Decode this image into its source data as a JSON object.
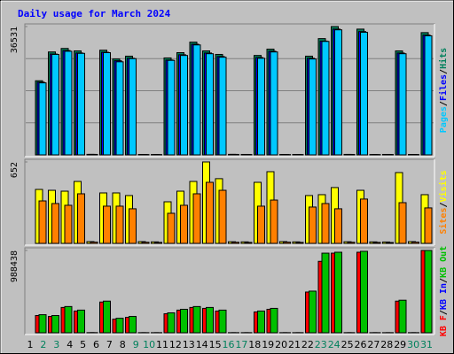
{
  "title": "Daily usage for March 2024",
  "chart_data": [
    {
      "type": "bar",
      "ylim": [
        0,
        36531
      ],
      "yticks": [
        36531
      ],
      "legend_separator": "/",
      "legend_reversed": true,
      "series": [
        {
          "name": "Hits",
          "color": "#00805c",
          "values": [
            21100,
            29300,
            30300,
            29600,
            150,
            29800,
            27300,
            28100,
            120,
            100,
            27600,
            29100,
            32100,
            29600,
            28600,
            150,
            130,
            28300,
            30100,
            110,
            120,
            28100,
            33100,
            36531,
            140,
            35800,
            100,
            130,
            29600,
            120,
            34800
          ]
        },
        {
          "name": "Files",
          "color": "#0000ff",
          "values": [
            20700,
            28700,
            29700,
            29000,
            140,
            29200,
            26800,
            27500,
            110,
            90,
            27000,
            28500,
            31500,
            29000,
            28000,
            140,
            120,
            27700,
            29500,
            100,
            110,
            27500,
            32400,
            35800,
            130,
            35100,
            90,
            120,
            29000,
            110,
            34100
          ]
        },
        {
          "name": "Pages",
          "color": "#00c8ff",
          "values": [
            20500,
            28600,
            29500,
            28900,
            130,
            29100,
            26500,
            27400,
            100,
            80,
            26900,
            28300,
            31300,
            28800,
            27800,
            130,
            110,
            27500,
            29300,
            90,
            100,
            27300,
            32300,
            35600,
            120,
            34900,
            80,
            110,
            28800,
            100,
            33900
          ]
        }
      ]
    },
    {
      "type": "bar",
      "ylim": [
        0,
        652
      ],
      "yticks": [
        652
      ],
      "legend_separator": "/",
      "legend_reversed": true,
      "series": [
        {
          "name": "Visits",
          "color": "#ffff00",
          "values": [
            432,
            425,
            418,
            496,
            14,
            404,
            404,
            383,
            14,
            12,
            333,
            418,
            496,
            652,
            518,
            13,
            12,
            489,
            574,
            14,
            12,
            383,
            390,
            447,
            13,
            425,
            12,
            11,
            567,
            14,
            390
          ]
        },
        {
          "name": "Sites",
          "color": "#ff8000",
          "values": [
            340,
            319,
            305,
            397,
            10,
            298,
            298,
            277,
            9,
            8,
            241,
            305,
            397,
            489,
            425,
            9,
            8,
            298,
            347,
            10,
            8,
            291,
            319,
            277,
            9,
            355,
            8,
            7,
            326,
            10,
            284
          ]
        }
      ]
    },
    {
      "type": "bar",
      "ylim": [
        0,
        988438
      ],
      "yticks": [
        988438
      ],
      "legend_separator": "/",
      "legend_reversed": false,
      "categories": [
        "1",
        "2",
        "3",
        "4",
        "5",
        "6",
        "7",
        "8",
        "9",
        "10",
        "11",
        "12",
        "13",
        "14",
        "15",
        "16",
        "17",
        "18",
        "19",
        "20",
        "21",
        "22",
        "23",
        "24",
        "25",
        "26",
        "27",
        "28",
        "29",
        "30",
        "31"
      ],
      "category_colors": [
        "#000000",
        "#00805c",
        "#00805c",
        "#000000",
        "#000000",
        "#000000",
        "#000000",
        "#000000",
        "#00805c",
        "#00805c",
        "#000000",
        "#000000",
        "#000000",
        "#000000",
        "#000000",
        "#00805c",
        "#00805c",
        "#000000",
        "#000000",
        "#000000",
        "#000000",
        "#000000",
        "#00805c",
        "#00805c",
        "#000000",
        "#000000",
        "#000000",
        "#000000",
        "#000000",
        "#00805c",
        "#00805c"
      ],
      "series": [
        {
          "name": "KB F",
          "color": "#ff0000",
          "values": [
            207000,
            196000,
            304000,
            261000,
            1800,
            369000,
            163000,
            185000,
            1400,
            1300,
            228000,
            272000,
            304000,
            293000,
            261000,
            1400,
            1300,
            250000,
            282000,
            1400,
            1300,
            489000,
            858000,
            956000,
            1400,
            967000,
            1300,
            1200,
            380000,
            1400,
            988438
          ]
        },
        {
          "name": "KB In",
          "color": "#0000ff",
          "values": [
            0,
            0,
            0,
            0,
            0,
            0,
            0,
            0,
            0,
            0,
            0,
            0,
            0,
            0,
            0,
            0,
            0,
            0,
            0,
            0,
            0,
            0,
            0,
            0,
            0,
            0,
            0,
            0,
            0,
            0,
            0
          ]
        },
        {
          "name": "KB Out",
          "color": "#00c000",
          "values": [
            217000,
            207000,
            315000,
            272000,
            2000,
            380000,
            174000,
            196000,
            1500,
            1500,
            239000,
            282000,
            315000,
            304000,
            272000,
            1500,
            1500,
            261000,
            293000,
            1500,
            1500,
            500000,
            956000,
            967000,
            1500,
            978000,
            1500,
            1500,
            391000,
            1500,
            988438
          ]
        }
      ]
    }
  ]
}
